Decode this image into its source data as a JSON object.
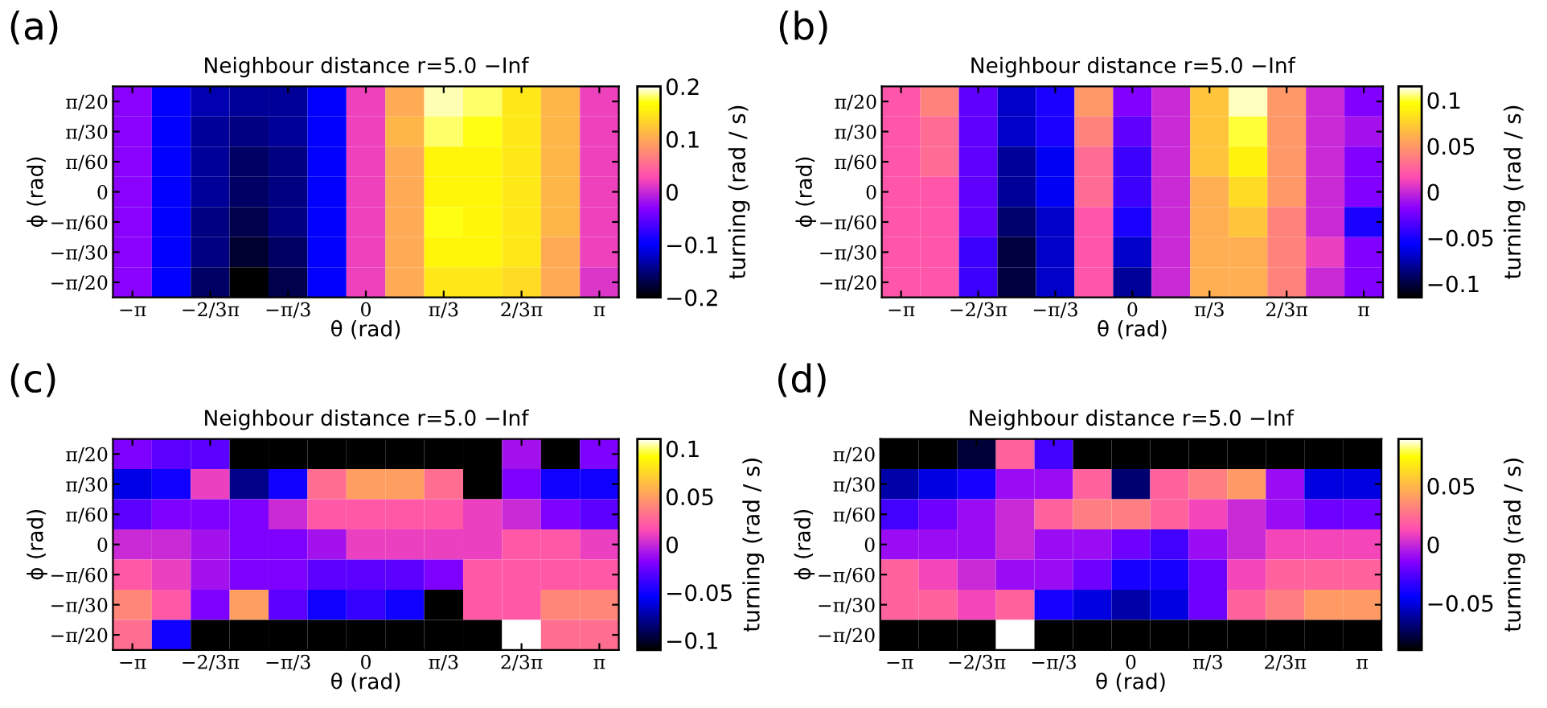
{
  "chart_data": [
    {
      "type": "heatmap",
      "title": "Neighbour distance r=5.0 −Inf",
      "annotations": [
        "(a)"
      ],
      "xlabel": "θ (rad)",
      "ylabel": "ϕ (rad)",
      "clabel": "turning (rad / s)",
      "categories": [
        "−π",
        null,
        "−2/3π",
        null,
        "−π/3",
        null,
        "0",
        null,
        "π/3",
        null,
        "2/3π",
        null,
        "π"
      ],
      "y_categories": [
        "π/20",
        "π/30",
        "π/60",
        "0",
        "−π/60",
        "−π/30",
        "−π/20"
      ],
      "clim": [
        -0.2,
        0.2
      ],
      "cticks": [
        {
          "value": -0.2,
          "label": "−0.2"
        },
        {
          "value": -0.1,
          "label": "−0.1"
        },
        {
          "value": 0,
          "label": "0"
        },
        {
          "value": 0.1,
          "label": "0.1"
        },
        {
          "value": 0.2,
          "label": "0.2"
        }
      ],
      "cells": [
        [
          -0.03,
          -0.1,
          -0.13,
          -0.14,
          -0.14,
          -0.1,
          0.02,
          0.1,
          0.19,
          0.18,
          0.15,
          0.11,
          0.02
        ],
        [
          -0.03,
          -0.1,
          -0.14,
          -0.15,
          -0.14,
          -0.1,
          0.02,
          0.11,
          0.18,
          0.17,
          0.15,
          0.11,
          0.02
        ],
        [
          -0.03,
          -0.1,
          -0.14,
          -0.16,
          -0.15,
          -0.1,
          0.02,
          0.1,
          0.16,
          0.16,
          0.15,
          0.11,
          0.02
        ],
        [
          -0.03,
          -0.1,
          -0.14,
          -0.16,
          -0.15,
          -0.1,
          0.02,
          0.1,
          0.16,
          0.16,
          0.15,
          0.11,
          0.02
        ],
        [
          -0.03,
          -0.1,
          -0.15,
          -0.17,
          -0.15,
          -0.1,
          0.02,
          0.1,
          0.17,
          0.16,
          0.15,
          0.11,
          0.02
        ],
        [
          -0.03,
          -0.1,
          -0.15,
          -0.18,
          -0.16,
          -0.1,
          0.02,
          0.1,
          0.16,
          0.16,
          0.15,
          0.1,
          0.02
        ],
        [
          -0.03,
          -0.1,
          -0.16,
          -0.2,
          -0.17,
          -0.1,
          0.02,
          0.1,
          0.15,
          0.15,
          0.14,
          0.1,
          0.01
        ]
      ]
    },
    {
      "type": "heatmap",
      "title": "Neighbour distance r=5.0 −Inf",
      "annotations": [
        "(b)"
      ],
      "xlabel": "θ (rad)",
      "ylabel": "ϕ (rad)",
      "clabel": "turning (rad / s)",
      "categories": [
        "−π",
        null,
        "−2/3π",
        null,
        "−π/3",
        null,
        "0",
        null,
        "π/3",
        null,
        "2/3π",
        null,
        "π"
      ],
      "y_categories": [
        "π/20",
        "π/30",
        "π/60",
        "0",
        "−π/60",
        "−π/30",
        "−π/20"
      ],
      "clim": [
        -0.115,
        0.115
      ],
      "cticks": [
        {
          "value": -0.1,
          "label": "−0.1"
        },
        {
          "value": -0.05,
          "label": "−0.05"
        },
        {
          "value": 0,
          "label": "0"
        },
        {
          "value": 0.05,
          "label": "0.05"
        },
        {
          "value": 0.1,
          "label": "0.1"
        }
      ],
      "cells": [
        [
          0.02,
          0.04,
          -0.03,
          -0.07,
          -0.05,
          0.05,
          -0.02,
          0.0,
          0.07,
          0.11,
          0.05,
          0.0,
          -0.02
        ],
        [
          0.02,
          0.03,
          -0.03,
          -0.07,
          -0.05,
          0.04,
          -0.03,
          0.0,
          0.07,
          0.1,
          0.05,
          0.0,
          -0.01
        ],
        [
          0.02,
          0.03,
          -0.03,
          -0.08,
          -0.06,
          0.03,
          -0.04,
          0.0,
          0.07,
          0.09,
          0.05,
          0.0,
          -0.02
        ],
        [
          0.02,
          0.02,
          -0.03,
          -0.08,
          -0.06,
          0.03,
          -0.04,
          0.0,
          0.06,
          0.08,
          0.05,
          0.0,
          -0.02
        ],
        [
          0.02,
          0.02,
          -0.03,
          -0.09,
          -0.07,
          0.02,
          -0.05,
          0.0,
          0.06,
          0.07,
          0.04,
          0.0,
          -0.05
        ],
        [
          0.02,
          0.02,
          -0.04,
          -0.1,
          -0.07,
          0.02,
          -0.07,
          0.0,
          0.06,
          0.06,
          0.04,
          0.01,
          -0.02
        ],
        [
          0.02,
          0.02,
          -0.04,
          -0.1,
          -0.07,
          0.02,
          -0.08,
          0.0,
          0.06,
          0.06,
          0.04,
          0.0,
          -0.02
        ]
      ]
    },
    {
      "type": "heatmap",
      "title": "Neighbour distance r=5.0 −Inf",
      "annotations": [
        "(c)"
      ],
      "xlabel": "θ (rad)",
      "ylabel": "ϕ (rad)",
      "clabel": "turning (rad / s)",
      "categories": [
        "−π",
        null,
        "−2/3π",
        null,
        "−π/3",
        null,
        "0",
        null,
        "π/3",
        null,
        "2/3π",
        null,
        "π"
      ],
      "y_categories": [
        "π/20",
        "π/30",
        "π/60",
        "0",
        "−π/60",
        "−π/30",
        "−π/20"
      ],
      "clim": [
        -0.11,
        0.11
      ],
      "cticks": [
        {
          "value": -0.1,
          "label": "−0.1"
        },
        {
          "value": -0.05,
          "label": "−0.05"
        },
        {
          "value": 0,
          "label": "0"
        },
        {
          "value": 0.05,
          "label": "0.05"
        },
        {
          "value": 0.1,
          "label": "0.1"
        }
      ],
      "cells": [
        [
          -0.02,
          -0.03,
          -0.03,
          -0.11,
          -0.11,
          -0.11,
          -0.11,
          -0.11,
          -0.11,
          -0.11,
          -0.01,
          -0.11,
          -0.02
        ],
        [
          -0.06,
          -0.05,
          0.01,
          -0.08,
          -0.05,
          0.03,
          0.05,
          0.05,
          0.03,
          -0.11,
          -0.02,
          -0.05,
          -0.05
        ],
        [
          -0.03,
          -0.02,
          -0.02,
          -0.02,
          0.0,
          0.02,
          0.02,
          0.02,
          0.02,
          0.01,
          0.0,
          -0.02,
          -0.03
        ],
        [
          0.0,
          0.0,
          -0.01,
          -0.02,
          -0.02,
          -0.01,
          0.01,
          0.01,
          0.01,
          0.01,
          0.02,
          0.02,
          0.01
        ],
        [
          0.02,
          0.01,
          -0.01,
          -0.02,
          -0.02,
          -0.03,
          -0.03,
          -0.03,
          -0.02,
          0.02,
          0.02,
          0.02,
          0.02
        ],
        [
          0.04,
          0.02,
          -0.02,
          0.05,
          -0.03,
          -0.05,
          -0.04,
          -0.05,
          -0.11,
          0.02,
          0.02,
          0.04,
          0.04
        ],
        [
          0.03,
          -0.05,
          -0.11,
          -0.11,
          -0.11,
          -0.11,
          -0.11,
          -0.11,
          -0.11,
          -0.11,
          0.11,
          0.03,
          0.03
        ]
      ]
    },
    {
      "type": "heatmap",
      "title": "Neighbour distance r=5.0 −Inf",
      "annotations": [
        "(d)"
      ],
      "xlabel": "θ (rad)",
      "ylabel": "ϕ (rad)",
      "clabel": "turning (rad / s)",
      "categories": [
        "−π",
        null,
        "−2/3π",
        null,
        "−π/3",
        null,
        "0",
        null,
        "π/3",
        null,
        "2/3π",
        null,
        "π"
      ],
      "y_categories": [
        "π/20",
        "π/30",
        "π/60",
        "0",
        "−π/60",
        "−π/30",
        "−π/20"
      ],
      "clim": [
        -0.09,
        0.09
      ],
      "cticks": [
        {
          "value": -0.05,
          "label": "−0.05"
        },
        {
          "value": 0,
          "label": "0"
        },
        {
          "value": 0.05,
          "label": "0.05"
        }
      ],
      "cells": [
        [
          -0.09,
          -0.09,
          -0.08,
          0.02,
          -0.03,
          -0.09,
          -0.09,
          -0.09,
          -0.09,
          -0.09,
          -0.09,
          -0.09,
          -0.09
        ],
        [
          -0.06,
          -0.05,
          -0.04,
          -0.01,
          -0.01,
          0.02,
          -0.07,
          0.02,
          0.03,
          0.04,
          -0.01,
          -0.05,
          -0.05
        ],
        [
          -0.03,
          -0.02,
          -0.01,
          0.0,
          0.02,
          0.03,
          0.03,
          0.02,
          0.01,
          0.0,
          -0.01,
          -0.02,
          -0.02
        ],
        [
          -0.01,
          -0.01,
          -0.01,
          0.0,
          -0.01,
          -0.01,
          -0.02,
          -0.03,
          -0.01,
          0.0,
          0.01,
          0.01,
          0.01
        ],
        [
          0.02,
          0.01,
          0.0,
          -0.01,
          -0.01,
          -0.02,
          -0.04,
          -0.04,
          -0.02,
          0.01,
          0.02,
          0.02,
          0.02
        ],
        [
          0.02,
          0.02,
          0.01,
          0.02,
          -0.04,
          -0.05,
          -0.06,
          -0.05,
          -0.02,
          0.02,
          0.03,
          0.04,
          0.04
        ],
        [
          -0.09,
          -0.09,
          -0.09,
          0.09,
          -0.09,
          -0.09,
          -0.09,
          -0.09,
          -0.09,
          -0.09,
          -0.09,
          -0.09,
          -0.09
        ]
      ]
    }
  ]
}
